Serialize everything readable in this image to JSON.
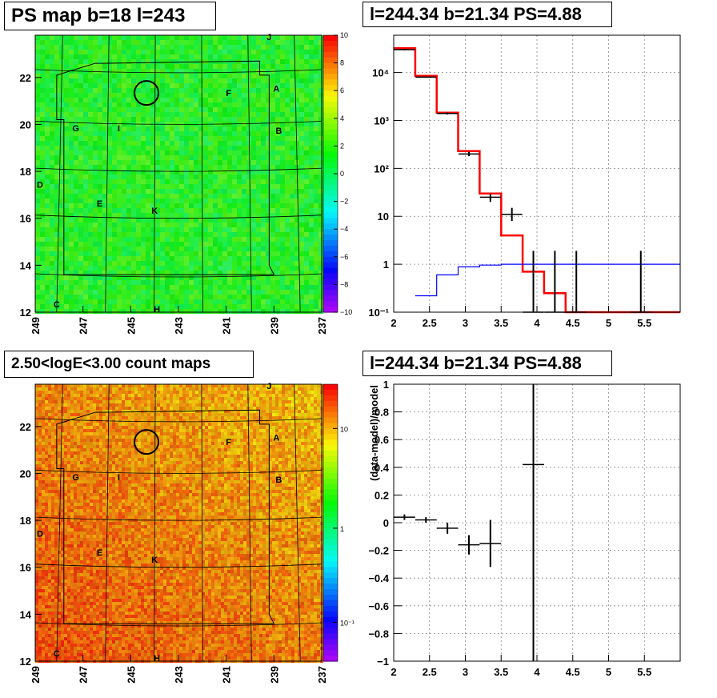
{
  "titles": {
    "psmap": "PS map b=18 l=243",
    "spectrum": "l=244.34 b=21.34 PS=4.88",
    "countmap": "2.50<logE<3.00 count maps",
    "residual": "l=244.34 b=21.34 PS=4.88"
  },
  "maps": {
    "xticks": [
      249,
      247,
      245,
      243,
      241,
      239,
      237
    ],
    "yticks": [
      12,
      14,
      16,
      18,
      20,
      22
    ],
    "source_labels": [
      "J",
      "A",
      "F",
      "B",
      "G",
      "I",
      "D",
      "E",
      "K",
      "C",
      "H"
    ],
    "ps_colorbar_ticks": [
      "10",
      "8",
      "6",
      "4",
      "2",
      "0",
      "−2",
      "−4",
      "−6",
      "−8",
      "−10"
    ],
    "count_colorbar_ticks": [
      "10",
      "1",
      "10⁻¹"
    ]
  },
  "chart_data": [
    {
      "type": "heatmap",
      "title": "PS map b=18 l=243",
      "xlim": [
        249,
        237
      ],
      "ylim": [
        12,
        23.8
      ],
      "zlim": [
        -10,
        10
      ],
      "grid": true,
      "source_labels": [
        {
          "name": "J",
          "l": 239.2,
          "b": 23.6
        },
        {
          "name": "A",
          "l": 238.9,
          "b": 21.4
        },
        {
          "name": "F",
          "l": 240.9,
          "b": 21.2
        },
        {
          "name": "B",
          "l": 238.8,
          "b": 19.6
        },
        {
          "name": "G",
          "l": 247.3,
          "b": 19.7
        },
        {
          "name": "I",
          "l": 245.5,
          "b": 19.7
        },
        {
          "name": "D",
          "l": 248.8,
          "b": 17.3
        },
        {
          "name": "E",
          "l": 246.3,
          "b": 16.5
        },
        {
          "name": "K",
          "l": 244.0,
          "b": 16.2
        },
        {
          "name": "C",
          "l": 248.1,
          "b": 12.2
        },
        {
          "name": "H",
          "l": 243.9,
          "b": 12.0
        }
      ],
      "circle": {
        "l": 244.34,
        "b": 21.34
      }
    },
    {
      "type": "line",
      "title": "l=244.34 b=21.34 PS=4.88",
      "xlim": [
        2,
        6
      ],
      "ylim": [
        0.1,
        60000
      ],
      "yscale": "log",
      "xticks": [
        2,
        2.5,
        3,
        3.5,
        4,
        4.5,
        5,
        5.5
      ],
      "yticks": [
        "10⁻¹",
        "1",
        "10",
        "10²",
        "10³",
        "10⁴"
      ],
      "grid": true,
      "series": [
        {
          "color": "#ff0000",
          "x": [
            2.0,
            2.3,
            2.3,
            2.6,
            2.6,
            2.9,
            2.9,
            3.2,
            3.2,
            3.5,
            3.5,
            3.8,
            3.8,
            4.1,
            4.1,
            4.4,
            4.4,
            6.0
          ],
          "y": [
            32000,
            32000,
            8500,
            8500,
            1450,
            1450,
            230,
            230,
            30,
            30,
            4,
            4,
            0.7,
            0.7,
            0.25,
            0.25,
            0.1,
            0.1
          ]
        },
        {
          "color": "#0000ff",
          "x": [
            2.3,
            2.6,
            2.6,
            2.9,
            2.9,
            3.2,
            3.2,
            3.5,
            3.5,
            6.0
          ],
          "y": [
            0.22,
            0.22,
            0.6,
            0.6,
            0.88,
            0.88,
            0.96,
            0.96,
            1.0,
            1.0
          ]
        },
        {
          "color": "#000000",
          "kind": "errorbar",
          "x": [
            2.15,
            2.45,
            2.75,
            3.05,
            3.35,
            3.65,
            3.95,
            4.25,
            4.55,
            5.45
          ],
          "y": [
            30000,
            8000,
            1400,
            200,
            25,
            11,
            0.1,
            0.1,
            0.1,
            0.1
          ],
          "ylo": [
            29000,
            7800,
            1330,
            180,
            20,
            8,
            0.1,
            0.1,
            0.1,
            0.1
          ],
          "yhi": [
            31000,
            8200,
            1470,
            220,
            30,
            15,
            1.9,
            1.9,
            1.9,
            1.9
          ]
        }
      ]
    },
    {
      "type": "heatmap",
      "title": "2.50<logE<3.00 count maps",
      "xlim": [
        249,
        237
      ],
      "ylim": [
        12,
        23.8
      ],
      "zscale": "log",
      "grid": true,
      "circle": {
        "l": 244.34,
        "b": 21.34
      }
    },
    {
      "type": "scatter",
      "title": "l=244.34 b=21.34 PS=4.88",
      "ylabel": "(data-model)/model",
      "xlim": [
        2,
        6
      ],
      "ylim": [
        -1,
        1
      ],
      "xticks": [
        2,
        2.5,
        3,
        3.5,
        4,
        4.5,
        5,
        5.5
      ],
      "yticks": [
        -1,
        -0.8,
        -0.6,
        -0.4,
        -0.2,
        0,
        0.2,
        0.4,
        0.6,
        0.8,
        1
      ],
      "grid": true,
      "x": [
        2.15,
        2.45,
        2.75,
        3.05,
        3.35,
        3.95
      ],
      "y": [
        0.04,
        0.02,
        -0.04,
        -0.16,
        -0.15,
        0.42
      ],
      "yerr": [
        0.02,
        0.02,
        0.04,
        0.07,
        0.17,
        1.7
      ],
      "xerr": [
        0.15,
        0.15,
        0.15,
        0.15,
        0.15,
        0.15
      ]
    }
  ]
}
